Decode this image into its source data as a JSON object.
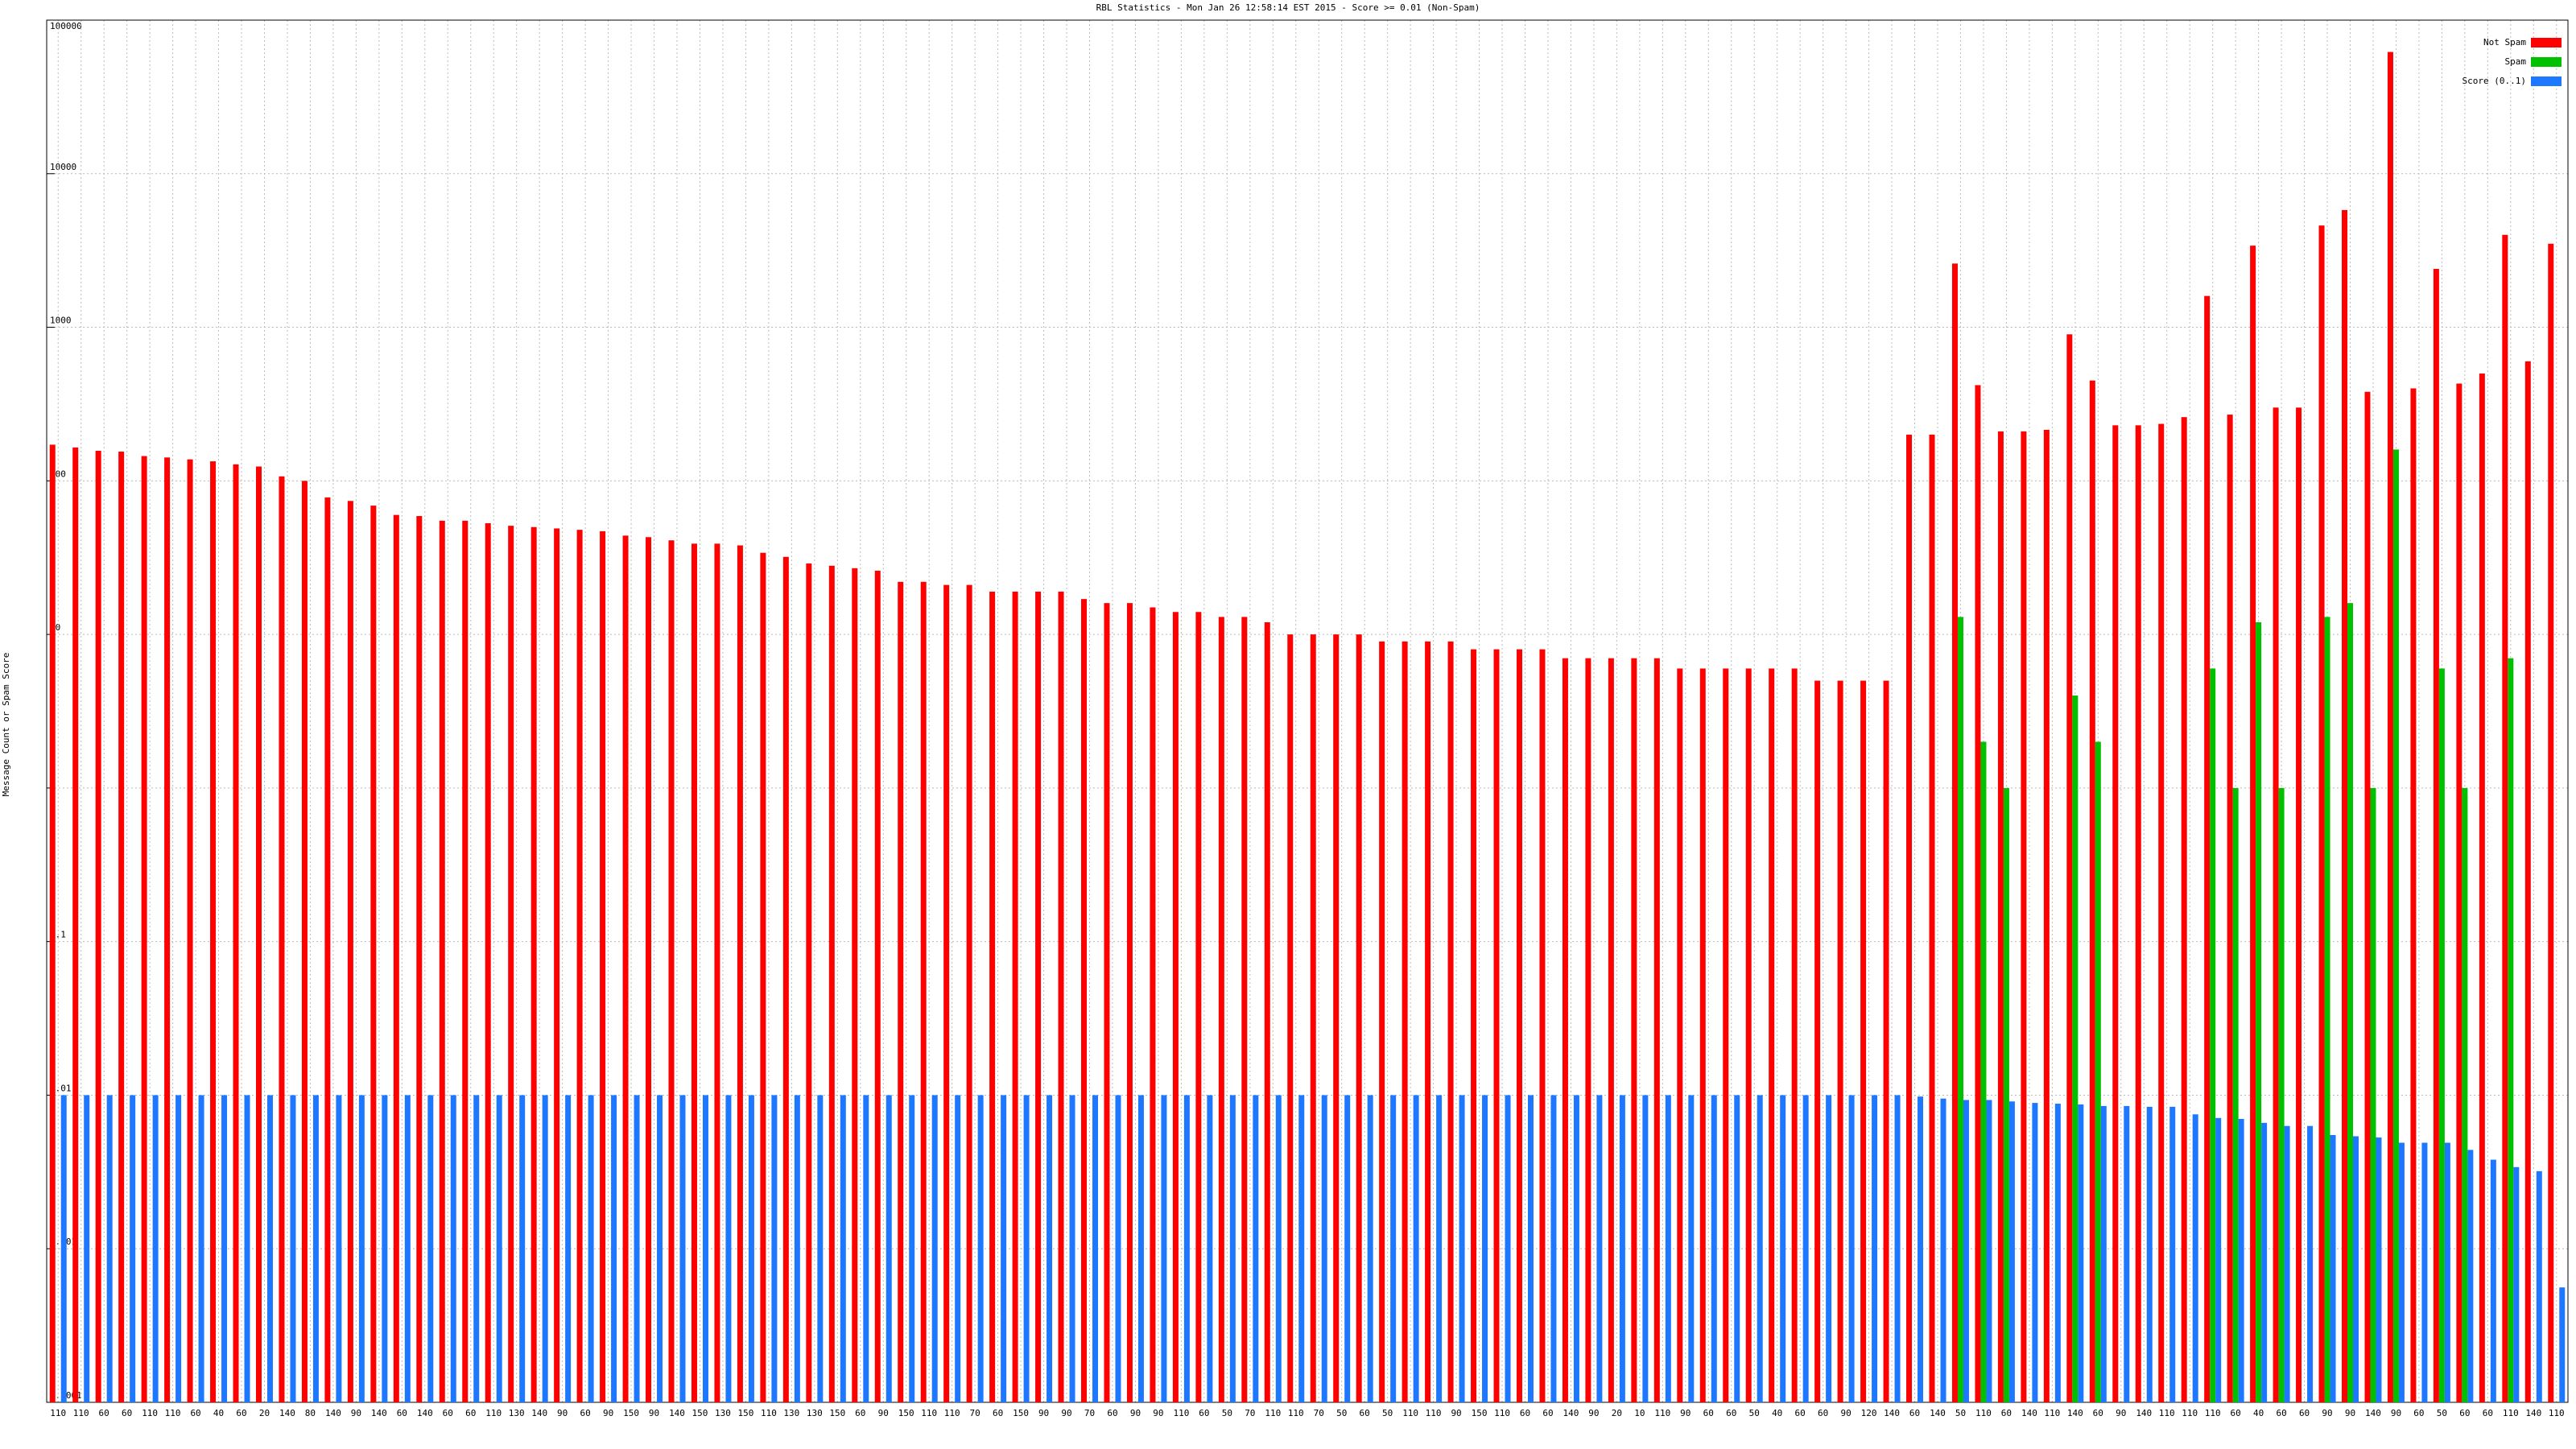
{
  "chart_data": {
    "type": "bar",
    "title": "RBL Statistics - Mon Jan 26 12:58:14 EST 2015 - Score >= 0.01 (Non-Spam)",
    "y_label": "Message Count or Spam Score",
    "log_scale": true,
    "grid": true,
    "legend": "top-right",
    "ylim": [
      0.0001,
      100000
    ],
    "yticks": [
      0.0001,
      0.001,
      0.01,
      0.1,
      1,
      10,
      100,
      1000,
      10000,
      100000
    ],
    "categories": [
      "110",
      "110",
      "60",
      "60",
      "110",
      "110",
      "60",
      "40",
      "60",
      "20",
      "140",
      "80",
      "140",
      "90",
      "140",
      "60",
      "140",
      "60",
      "60",
      "110",
      "130",
      "140",
      "90",
      "60",
      "90",
      "150",
      "90",
      "140",
      "150",
      "130",
      "150",
      "110",
      "130",
      "130",
      "150",
      "60",
      "90",
      "150",
      "110",
      "110",
      "70",
      "60",
      "150",
      "90",
      "90",
      "70",
      "60",
      "90",
      "90",
      "110",
      "60",
      "50",
      "70",
      "110",
      "110",
      "70",
      "50",
      "60",
      "50",
      "110",
      "110",
      "90",
      "150",
      "110",
      "60",
      "60",
      "140",
      "90",
      "20",
      "10",
      "110",
      "90",
      "60",
      "60",
      "50",
      "40",
      "60",
      "60",
      "90",
      "120",
      "140",
      "60",
      "140",
      "50",
      "110",
      "60",
      "140",
      "110",
      "140",
      "60",
      "90",
      "140",
      "110",
      "110",
      "110",
      "60",
      "40",
      "60",
      "60",
      "90",
      "90",
      "140",
      "90",
      "60",
      "50",
      "60",
      "60",
      "110",
      "140",
      "110"
    ],
    "series": [
      {
        "name": "Not Spam",
        "color": "#ff0000",
        "values": [
          172,
          165,
          157,
          155,
          145,
          142,
          138,
          134,
          128,
          124,
          107,
          100,
          78,
          74,
          69,
          60,
          59,
          55,
          55,
          53,
          51,
          50,
          49,
          48,
          47,
          44,
          43,
          41,
          39,
          39,
          38,
          34,
          32,
          29,
          28,
          27,
          26,
          22,
          22,
          21,
          21,
          19,
          19,
          19,
          19,
          17,
          16,
          16,
          15,
          14,
          14,
          13,
          13,
          12,
          10,
          10,
          10,
          10,
          9,
          9,
          9,
          9,
          8,
          8,
          8,
          8,
          7,
          7,
          7,
          7,
          7,
          6,
          6,
          6,
          6,
          6,
          6,
          5,
          5,
          5,
          5,
          200,
          200,
          2600,
          420,
          210,
          210,
          215,
          900,
          450,
          230,
          230,
          235,
          260,
          1600,
          270,
          3400,
          300,
          300,
          4600,
          5800,
          380,
          62000,
          400,
          2400,
          430,
          500,
          4000,
          600,
          3500
        ]
      },
      {
        "name": "Spam",
        "color": "#00c000",
        "values": [
          null,
          null,
          null,
          null,
          null,
          null,
          null,
          null,
          null,
          null,
          null,
          null,
          null,
          null,
          null,
          null,
          null,
          null,
          null,
          null,
          null,
          null,
          null,
          null,
          null,
          null,
          null,
          null,
          null,
          null,
          null,
          null,
          null,
          null,
          null,
          null,
          null,
          null,
          null,
          null,
          null,
          null,
          null,
          null,
          null,
          null,
          null,
          null,
          null,
          null,
          null,
          null,
          null,
          null,
          null,
          null,
          null,
          null,
          null,
          null,
          null,
          null,
          null,
          null,
          null,
          null,
          null,
          null,
          null,
          null,
          null,
          null,
          null,
          null,
          null,
          null,
          null,
          null,
          null,
          null,
          null,
          null,
          null,
          13,
          2,
          1,
          null,
          null,
          4,
          2,
          null,
          null,
          null,
          null,
          6,
          1,
          12,
          1,
          null,
          13,
          16,
          1,
          160,
          null,
          6,
          1,
          null,
          7,
          null,
          null
        ]
      },
      {
        "name": "Score (0..1)",
        "color": "#1e78ff",
        "values": [
          0.01,
          0.01,
          0.01,
          0.01,
          0.01,
          0.01,
          0.01,
          0.01,
          0.01,
          0.01,
          0.01,
          0.01,
          0.01,
          0.01,
          0.01,
          0.01,
          0.01,
          0.01,
          0.01,
          0.01,
          0.01,
          0.01,
          0.01,
          0.01,
          0.01,
          0.01,
          0.01,
          0.01,
          0.01,
          0.01,
          0.01,
          0.01,
          0.01,
          0.01,
          0.01,
          0.01,
          0.01,
          0.01,
          0.01,
          0.01,
          0.01,
          0.01,
          0.01,
          0.01,
          0.01,
          0.01,
          0.01,
          0.01,
          0.01,
          0.01,
          0.01,
          0.01,
          0.01,
          0.01,
          0.01,
          0.01,
          0.01,
          0.01,
          0.01,
          0.01,
          0.01,
          0.01,
          0.01,
          0.01,
          0.01,
          0.01,
          0.01,
          0.01,
          0.01,
          0.01,
          0.01,
          0.01,
          0.01,
          0.01,
          0.01,
          0.01,
          0.01,
          0.01,
          0.01,
          0.01,
          0.01,
          0.0098,
          0.0095,
          0.0093,
          0.0093,
          0.0091,
          0.0089,
          0.0088,
          0.0087,
          0.0085,
          0.0085,
          0.0084,
          0.0084,
          0.0075,
          0.0071,
          0.007,
          0.0066,
          0.0063,
          0.0063,
          0.0055,
          0.0054,
          0.0053,
          0.0049,
          0.0049,
          0.0049,
          0.0044,
          0.0038,
          0.0034,
          0.0032,
          0.00056
        ]
      }
    ]
  }
}
